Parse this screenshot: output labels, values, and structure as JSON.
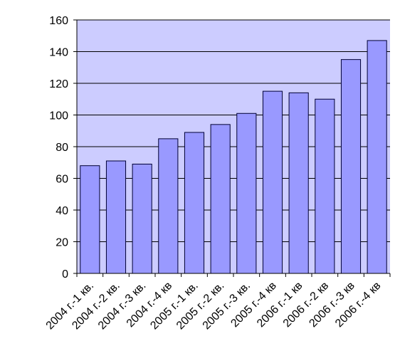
{
  "chart_data": {
    "type": "bar",
    "categories": [
      "2004 г.-1 кв.",
      "2004 г.-2 кв.",
      "2004 г.-3 кв.",
      "2004 г.-4 кв",
      "2005 г.-1 кв.",
      "2005 г.-2 кв.",
      "2005 г.-3 кв.",
      "2005 г.-4 кв",
      "2006 г.-1 кв",
      "2006 г.-2 кв",
      "2006 г.-3 кв",
      "2006 г.-4 кв"
    ],
    "values": [
      68,
      71,
      69,
      85,
      89,
      94,
      101,
      115,
      114,
      110,
      135,
      147
    ],
    "color": "#9999ff",
    "plot_background": "#ccccff",
    "ylim": [
      0,
      160
    ],
    "yticks": [
      0,
      20,
      40,
      60,
      80,
      100,
      120,
      140,
      160
    ],
    "grid": true
  }
}
